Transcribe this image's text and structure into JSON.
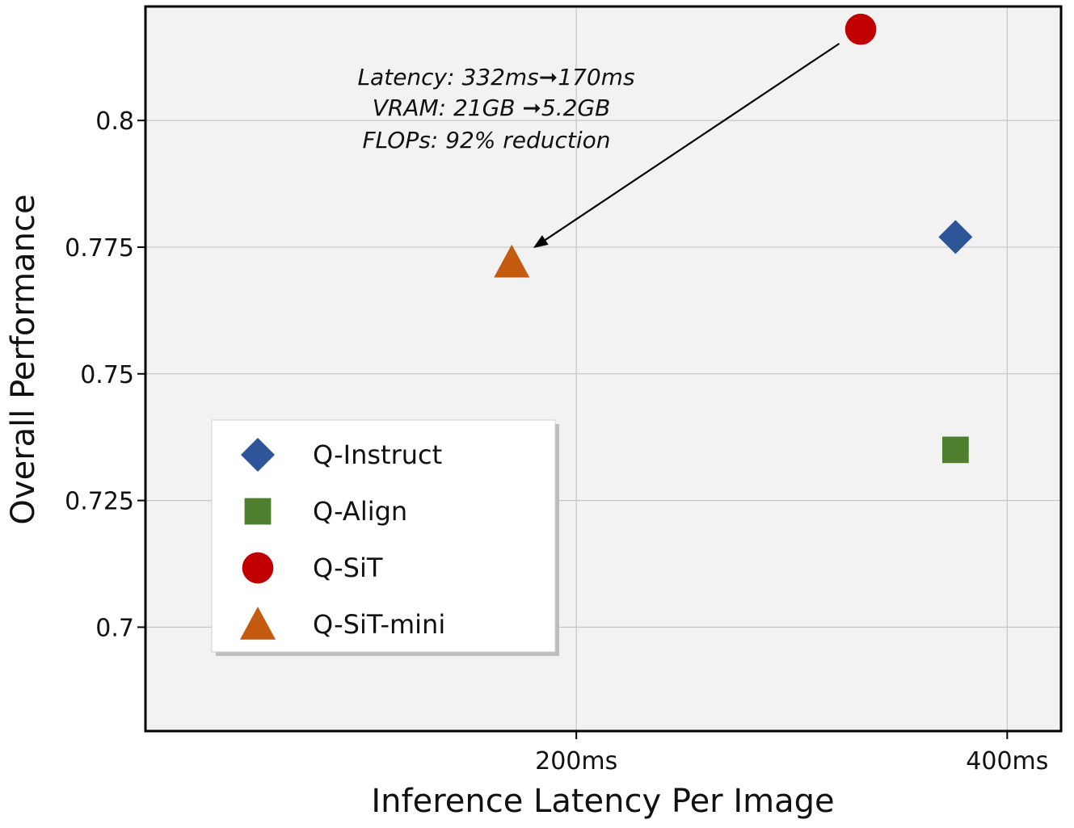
{
  "chart_data": {
    "type": "scatter",
    "xlabel": "Inference Latency Per Image",
    "ylabel": "Overall Performance",
    "x_ticks": [
      {
        "value": 200,
        "label": "200ms"
      },
      {
        "value": 400,
        "label": "400ms"
      }
    ],
    "y_ticks": [
      {
        "value": 0.7,
        "label": "0.7"
      },
      {
        "value": 0.725,
        "label": "0.725"
      },
      {
        "value": 0.75,
        "label": "0.75"
      },
      {
        "value": 0.775,
        "label": "0.775"
      },
      {
        "value": 0.8,
        "label": "0.8"
      }
    ],
    "xlim": [
      0,
      425
    ],
    "ylim": [
      0.6795,
      0.8225
    ],
    "grid": true,
    "legend_position": "lower-left",
    "series": [
      {
        "name": "Q-Instruct",
        "marker": "diamond",
        "color": "#2E5597",
        "x": 376,
        "y": 0.777
      },
      {
        "name": "Q-Align",
        "marker": "square",
        "color": "#4E7F2E",
        "x": 376,
        "y": 0.735
      },
      {
        "name": "Q-SiT",
        "marker": "circle",
        "color": "#C00000",
        "x": 332,
        "y": 0.818
      },
      {
        "name": "Q-SiT-mini",
        "marker": "triangle",
        "color": "#C55A11",
        "x": 170,
        "y": 0.772
      }
    ],
    "annotation": {
      "lines": [
        "Latency: 332ms➞170ms",
        "VRAM:  21GB ➞5.2GB",
        "FLOPs:  92% reduction"
      ],
      "arrow_from": "Q-SiT",
      "arrow_to": "Q-SiT-mini"
    }
  }
}
